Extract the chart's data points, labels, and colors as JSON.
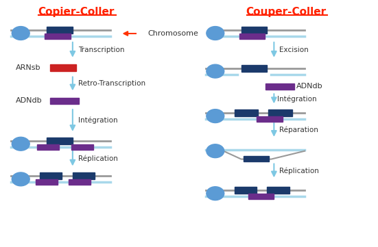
{
  "title_left": "Copier-Coller",
  "title_right": "Couper-Coller",
  "title_color": "#FF2200",
  "chromosome_label": "Chromosome",
  "chromosome_arrow_color": "#FF3300",
  "arrow_color": "#7EC8E3",
  "text_color": "#333333",
  "dark_blue": "#1B3A6B",
  "purple": "#6B2D8B",
  "red": "#CC2222",
  "light_blue_line": "#A8D8EA",
  "gray_line": "#999999",
  "blue_circle": "#5B9BD5",
  "steps_left": [
    "Transcription",
    "Retro-Transcription",
    "Intégration",
    "Réplication"
  ],
  "steps_right": [
    "Excision",
    "Intégration",
    "Réparation",
    "Réplication"
  ],
  "arnlabel": "ARNsb",
  "adnlabel": "ADNdb",
  "adnlabel_right": "ADNdb"
}
